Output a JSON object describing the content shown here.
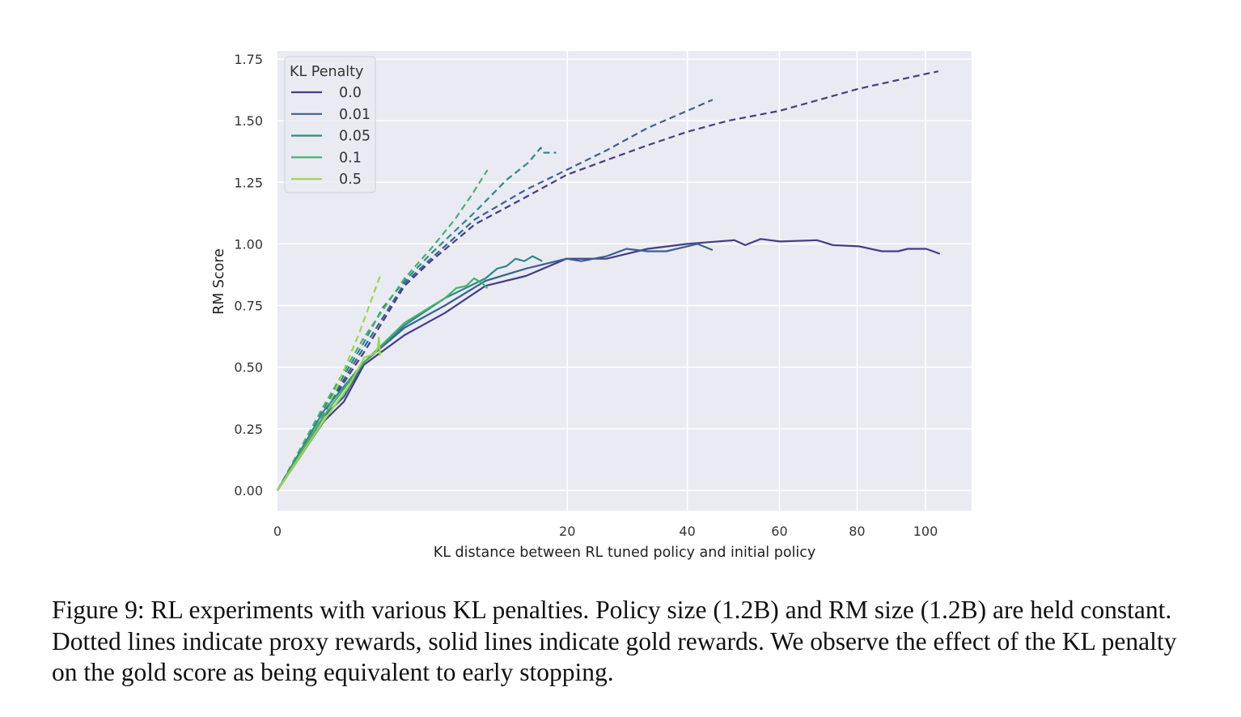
{
  "chart_data": {
    "type": "line",
    "title": "",
    "xlabel": "KL distance between RL tuned policy and initial policy",
    "ylabel": "RM Score",
    "x_scale": "sqrt",
    "xlim": [
      0,
      110
    ],
    "ylim": [
      -0.08,
      1.78
    ],
    "xticks": [
      0,
      20,
      40,
      60,
      80,
      100
    ],
    "xtick_labels": [
      "0",
      "20",
      "40",
      "60",
      "80",
      "100"
    ],
    "yticks": [
      0,
      0.25,
      0.5,
      0.75,
      1.0,
      1.25,
      1.5,
      1.75
    ],
    "ytick_labels": [
      "0.00",
      "0.25",
      "0.50",
      "0.75",
      "1.00",
      "1.25",
      "1.50",
      "1.75"
    ],
    "grid": true,
    "legend": {
      "title": "KL Penalty",
      "placement": "top-left",
      "style_note_solid": "gold",
      "style_note_dashed": "proxy"
    },
    "series": [
      {
        "name": "0.0",
        "color": "#433e85",
        "kind": "proxy",
        "x": [
          0,
          0.51,
          1.78,
          3.84,
          5.6,
          9.3,
          14.7,
          19.9,
          25.8,
          32.6,
          40,
          48.4,
          60.1,
          80.6,
          100.2,
          104
        ],
        "y": [
          0,
          0.315,
          0.56,
          0.83,
          0.93,
          1.08,
          1.19,
          1.28,
          1.34,
          1.4,
          1.455,
          1.5,
          1.54,
          1.63,
          1.69,
          1.7
        ]
      },
      {
        "name": "0.01",
        "color": "#38628d",
        "kind": "proxy",
        "x": [
          0,
          0.51,
          1.78,
          3.84,
          5.6,
          9.3,
          14.7,
          19.9,
          25.8,
          32.6,
          40,
          45.1
        ],
        "y": [
          0,
          0.32,
          0.58,
          0.84,
          0.94,
          1.1,
          1.22,
          1.3,
          1.38,
          1.47,
          1.54,
          1.585
        ]
      },
      {
        "name": "0.05",
        "color": "#2b8a87",
        "kind": "proxy",
        "x": [
          0,
          0.5,
          1.78,
          2.63,
          3.84,
          5.6,
          9.3,
          12.5,
          15,
          16.5,
          16.8,
          18.5
        ],
        "y": [
          0,
          0.33,
          0.6,
          0.74,
          0.85,
          0.96,
          1.13,
          1.26,
          1.33,
          1.39,
          1.37,
          1.37
        ]
      },
      {
        "name": "0.1",
        "color": "#46b26f",
        "kind": "proxy",
        "x": [
          0,
          0.5,
          1.78,
          3.84,
          5.6,
          7.5,
          9,
          10.5
        ],
        "y": [
          0,
          0.34,
          0.62,
          0.86,
          0.98,
          1.1,
          1.2,
          1.3
        ]
      },
      {
        "name": "0.5",
        "color": "#9bd64a",
        "kind": "proxy",
        "x": [
          0,
          0.76,
          1.6,
          2.55
        ],
        "y": [
          0,
          0.39,
          0.64,
          0.88
        ]
      },
      {
        "name": "0.0",
        "color": "#433e85",
        "kind": "gold",
        "x": [
          0,
          0.51,
          1.05,
          1.78,
          3.84,
          6.68,
          10.3,
          14.7,
          19.9,
          25.8,
          32.6,
          40,
          49.7,
          52.1,
          55.6,
          60.1,
          69.3,
          73.5,
          80.6,
          87,
          91.7,
          94.6,
          100.2,
          104.5
        ],
        "y": [
          0,
          0.28,
          0.36,
          0.51,
          0.63,
          0.72,
          0.83,
          0.87,
          0.94,
          0.94,
          0.98,
          1.0,
          1.015,
          0.995,
          1.02,
          1.01,
          1.015,
          0.995,
          0.99,
          0.97,
          0.97,
          0.98,
          0.98,
          0.96
        ]
      },
      {
        "name": "0.01",
        "color": "#38628d",
        "kind": "gold",
        "x": [
          0,
          0.51,
          1.05,
          1.78,
          3.84,
          6.68,
          10.3,
          14.7,
          19.9,
          22,
          25.8,
          29,
          32.6,
          36,
          40,
          42,
          45.1
        ],
        "y": [
          0,
          0.3,
          0.38,
          0.52,
          0.66,
          0.75,
          0.85,
          0.9,
          0.94,
          0.93,
          0.95,
          0.98,
          0.97,
          0.97,
          0.99,
          1.0,
          0.975
        ]
      },
      {
        "name": "0.05",
        "color": "#2b8a87",
        "kind": "gold",
        "x": [
          0,
          0.5,
          1.78,
          3.84,
          6.68,
          10.3,
          11.5,
          12.5,
          13.5,
          14.5,
          15.5,
          16.7
        ],
        "y": [
          0,
          0.32,
          0.52,
          0.67,
          0.78,
          0.86,
          0.9,
          0.91,
          0.94,
          0.93,
          0.95,
          0.93
        ]
      },
      {
        "name": "0.1",
        "color": "#46b26f",
        "kind": "gold",
        "x": [
          0,
          0.5,
          1.78,
          3.84,
          6.68,
          7.6,
          8.5,
          9.2,
          10,
          10.5
        ],
        "y": [
          0,
          0.3,
          0.52,
          0.68,
          0.78,
          0.82,
          0.83,
          0.86,
          0.84,
          0.82
        ]
      },
      {
        "name": "0.5",
        "color": "#9bd64a",
        "kind": "gold",
        "x": [
          0,
          0.5,
          1.2,
          1.8,
          2.1,
          2.3,
          2.4,
          2.45,
          2.5,
          2.55
        ],
        "y": [
          0,
          0.28,
          0.42,
          0.54,
          0.55,
          0.56,
          0.58,
          0.62,
          0.55,
          0.56
        ]
      }
    ]
  },
  "caption": "Figure 9: RL experiments with various KL penalties. Policy size (1.2B) and RM size (1.2B) are held constant. Dotted lines indicate proxy rewards, solid lines indicate gold rewards. We observe the effect of the KL penalty on the gold score as being equivalent to early stopping."
}
